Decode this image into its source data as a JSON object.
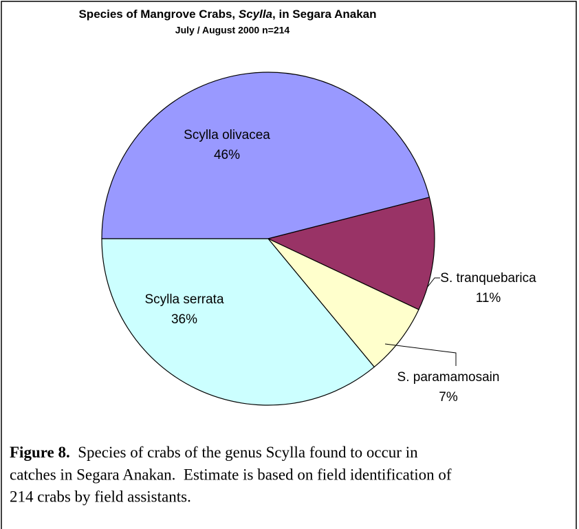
{
  "chart_data": {
    "type": "pie",
    "title": [
      "Species of Mangrove Crabs, ",
      "Scylla",
      ", in Segara Anakan"
    ],
    "subtitle": "July / August 2000  n=214",
    "categories": [
      "Scylla olivacea",
      "S. tranquebarica",
      "S. paramamosain",
      "Scylla serrata"
    ],
    "values": [
      46,
      11,
      7,
      36
    ],
    "value_labels": [
      "46%",
      "11%",
      "7%",
      "36%"
    ],
    "colors": [
      "#9999ff",
      "#993366",
      "#ffffcc",
      "#ccffff"
    ]
  },
  "caption": {
    "label": "Figure 8.",
    "lines": [
      "  Species of crabs of the genus Scylla found to occur in",
      "catches in Segara Anakan.  Estimate is based on field identification of",
      "214 crabs by field assistants."
    ]
  }
}
